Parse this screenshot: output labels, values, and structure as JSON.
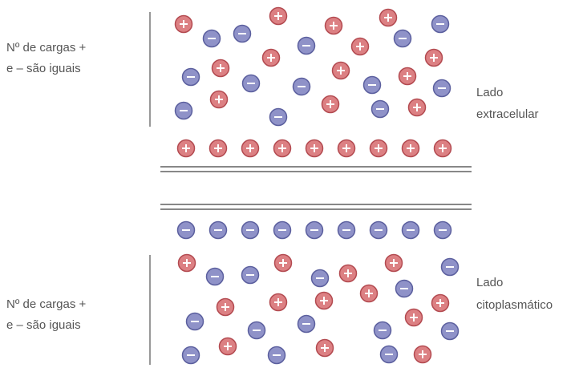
{
  "top": {
    "note": [
      "Nº de cargas +",
      "e – são iguais"
    ],
    "side": [
      "Lado",
      "extracelular"
    ]
  },
  "bottom": {
    "note": [
      "Nº de cargas +",
      "e – são iguais"
    ],
    "side": [
      "Lado",
      "citoplasmático"
    ]
  }
}
